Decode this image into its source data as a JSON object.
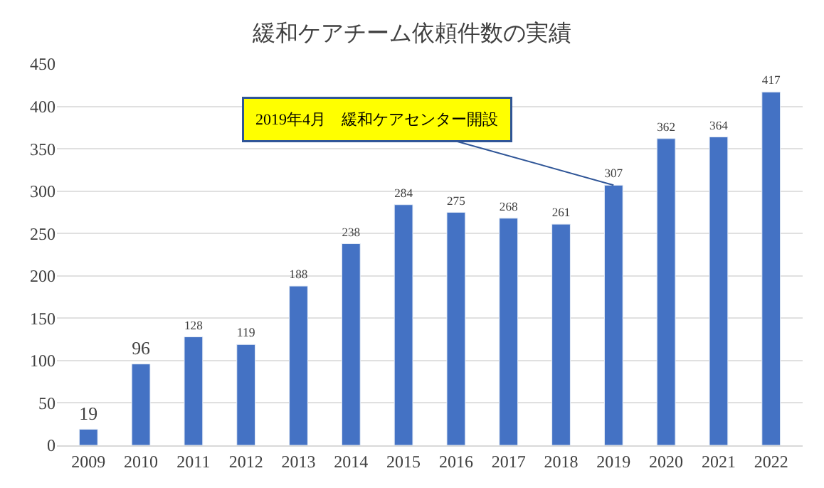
{
  "chart_data": {
    "type": "bar",
    "title": "緩和ケアチーム依頼件数の実績",
    "categories": [
      "2009",
      "2010",
      "2011",
      "2012",
      "2013",
      "2014",
      "2015",
      "2016",
      "2017",
      "2018",
      "2019",
      "2020",
      "2021",
      "2022"
    ],
    "values": [
      19,
      96,
      128,
      119,
      188,
      238,
      284,
      275,
      268,
      261,
      307,
      362,
      364,
      417
    ],
    "color": "#4472c4",
    "ylim": [
      0,
      450
    ],
    "yticks": [
      0,
      50,
      100,
      150,
      200,
      250,
      300,
      350,
      400,
      450
    ],
    "grid": "y",
    "data_labels": true,
    "legend": false,
    "annotations": [
      {
        "text": "2019年4月　緩和ケアセンター開設",
        "x": "2019",
        "y": 307
      }
    ]
  }
}
